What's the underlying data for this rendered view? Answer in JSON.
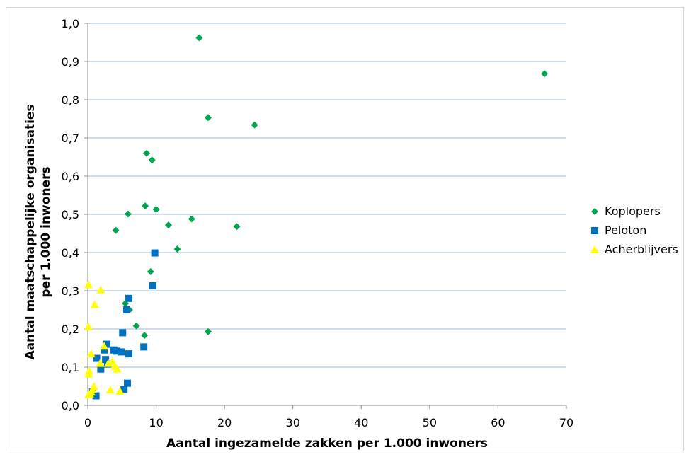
{
  "chart_data": {
    "type": "scatter",
    "title": "",
    "xlabel": "Aantal ingezamelde zakken per 1.000 inwoners",
    "ylabel": [
      "Aantal maatschappelijke organisaties",
      "per 1.000 inwoners"
    ],
    "xlim": [
      0,
      70
    ],
    "ylim": [
      0,
      1.0
    ],
    "x_ticks": [
      0,
      10,
      20,
      30,
      40,
      50,
      60,
      70
    ],
    "x_tick_labels": [
      "0",
      "10",
      "20",
      "30",
      "40",
      "50",
      "60",
      "70"
    ],
    "y_ticks": [
      0,
      0.1,
      0.2,
      0.3,
      0.4,
      0.5,
      0.6,
      0.7,
      0.8,
      0.9,
      1.0
    ],
    "y_tick_labels": [
      "0,0",
      "0,1",
      "0,2",
      "0,3",
      "0,4",
      "0,5",
      "0,6",
      "0,7",
      "0,8",
      "0,9",
      "1,0"
    ],
    "grid": "horizontal",
    "legend_position": "right",
    "series": [
      {
        "name": "Koplopers",
        "marker": "diamond",
        "color": "#00a550",
        "points": [
          [
            16.3,
            0.962
          ],
          [
            66.8,
            0.868
          ],
          [
            17.6,
            0.753
          ],
          [
            24.4,
            0.734
          ],
          [
            8.6,
            0.66
          ],
          [
            9.4,
            0.642
          ],
          [
            8.4,
            0.522
          ],
          [
            10.0,
            0.513
          ],
          [
            5.9,
            0.501
          ],
          [
            15.2,
            0.488
          ],
          [
            11.8,
            0.472
          ],
          [
            21.8,
            0.468
          ],
          [
            4.1,
            0.458
          ],
          [
            13.1,
            0.409
          ],
          [
            9.2,
            0.35
          ],
          [
            5.5,
            0.267
          ],
          [
            6.1,
            0.25
          ],
          [
            7.1,
            0.208
          ],
          [
            17.6,
            0.193
          ],
          [
            8.3,
            0.183
          ]
        ]
      },
      {
        "name": "Peloton",
        "marker": "square",
        "color": "#0070c0",
        "points": [
          [
            9.8,
            0.399
          ],
          [
            9.5,
            0.313
          ],
          [
            6.0,
            0.28
          ],
          [
            5.7,
            0.25
          ],
          [
            5.1,
            0.19
          ],
          [
            2.8,
            0.16
          ],
          [
            8.2,
            0.153
          ],
          [
            3.8,
            0.145
          ],
          [
            2.4,
            0.145
          ],
          [
            4.2,
            0.142
          ],
          [
            4.9,
            0.14
          ],
          [
            6.0,
            0.135
          ],
          [
            1.3,
            0.123
          ],
          [
            2.6,
            0.12
          ],
          [
            2.9,
            0.108
          ],
          [
            1.9,
            0.095
          ],
          [
            5.8,
            0.058
          ],
          [
            5.3,
            0.042
          ],
          [
            0.7,
            0.035
          ],
          [
            1.2,
            0.025
          ]
        ]
      },
      {
        "name": "Acherblijvers",
        "marker": "triangle",
        "color": "#ffff00",
        "points": [
          [
            0.1,
            0.316
          ],
          [
            1.9,
            0.302
          ],
          [
            1.0,
            0.264
          ],
          [
            0.1,
            0.206
          ],
          [
            2.4,
            0.155
          ],
          [
            0.5,
            0.135
          ],
          [
            3.6,
            0.115
          ],
          [
            3.0,
            0.11
          ],
          [
            1.8,
            0.11
          ],
          [
            4.0,
            0.102
          ],
          [
            4.3,
            0.095
          ],
          [
            0.2,
            0.09
          ],
          [
            0.1,
            0.082
          ],
          [
            0.9,
            0.05
          ],
          [
            0.7,
            0.042
          ],
          [
            3.3,
            0.04
          ],
          [
            4.7,
            0.037
          ],
          [
            0.5,
            0.035
          ],
          [
            0.3,
            0.03
          ],
          [
            0.1,
            0.028
          ]
        ]
      }
    ]
  }
}
